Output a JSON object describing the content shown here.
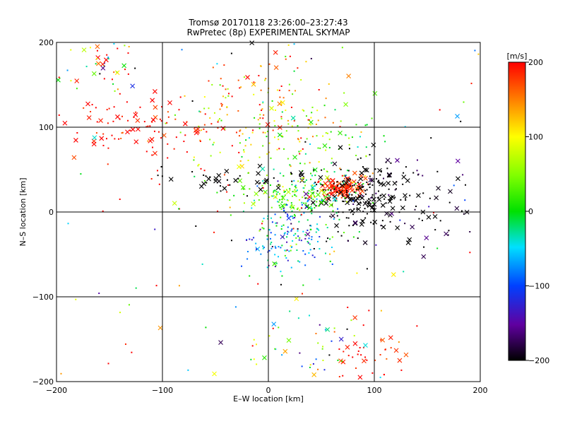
{
  "chart_data": {
    "type": "scatter",
    "title": "Tromsø 20170118 23:26:00–23:27:43",
    "subtitle": "RwPretec (8p) EXPERIMENTAL SKYMAP",
    "xlabel": "E–W location [km]",
    "ylabel": "N–S location [km]",
    "xlim": [
      -200,
      200
    ],
    "ylim": [
      -200,
      200
    ],
    "xticks": [
      "−200",
      "−100",
      "0",
      "100",
      "200"
    ],
    "yticks": [
      "−200",
      "−100",
      "0",
      "100",
      "200"
    ],
    "grid": true,
    "colorbar": {
      "label": "[m/s]",
      "range": [
        -200,
        200
      ],
      "ticks": [
        "200",
        "100",
        "0",
        "−100",
        "−200"
      ],
      "colormap": "rainbow-black",
      "placement": "right"
    },
    "marker_styles": [
      "dot",
      "x"
    ],
    "clusters": [
      {
        "x": 70,
        "y": 28,
        "spread": [
          10,
          6
        ],
        "n": 140,
        "v": 180,
        "vs": 20,
        "xmark": 0.25
      },
      {
        "x": 85,
        "y": 20,
        "spread": [
          22,
          20
        ],
        "n": 180,
        "v": -210,
        "vs": 8,
        "xmark": 0.35
      },
      {
        "x": 25,
        "y": 20,
        "spread": [
          25,
          12
        ],
        "n": 160,
        "v": 20,
        "vs": 40,
        "xmark": 0.12
      },
      {
        "x": 20,
        "y": -25,
        "spread": [
          20,
          22
        ],
        "n": 180,
        "v": -60,
        "vs": 60,
        "xmark": 0.03
      },
      {
        "x": -10,
        "y": 120,
        "spread": [
          40,
          35
        ],
        "n": 140,
        "v": 130,
        "vs": 70,
        "xmark": 0.08
      },
      {
        "x": -120,
        "y": 100,
        "spread": [
          45,
          20
        ],
        "n": 110,
        "v": 200,
        "vs": 20,
        "xmark": 0.3
      },
      {
        "x": -165,
        "y": 170,
        "spread": [
          22,
          18
        ],
        "n": 45,
        "v": 80,
        "vs": 120,
        "xmark": 0.3
      },
      {
        "x": 25,
        "y": 85,
        "spread": [
          45,
          30
        ],
        "n": 130,
        "v": 60,
        "vs": 50,
        "xmark": 0.1
      },
      {
        "x": -15,
        "y": 35,
        "spread": [
          40,
          10
        ],
        "n": 50,
        "v": -210,
        "vs": 10,
        "xmark": 0.4
      },
      {
        "x": 130,
        "y": 20,
        "spread": [
          40,
          30
        ],
        "n": 90,
        "v": -200,
        "vs": 30,
        "xmark": 0.35
      },
      {
        "x": 95,
        "y": -170,
        "spread": [
          20,
          20
        ],
        "n": 45,
        "v": 190,
        "vs": 20,
        "xmark": 0.3
      },
      {
        "x": 25,
        "y": -160,
        "spread": [
          40,
          25
        ],
        "n": 50,
        "v": 20,
        "vs": 150,
        "xmark": 0.2
      },
      {
        "x": 0,
        "y": 0,
        "spread": [
          170,
          160
        ],
        "n": 160,
        "v": 50,
        "vs": 160,
        "xmark": 0.15
      }
    ]
  }
}
